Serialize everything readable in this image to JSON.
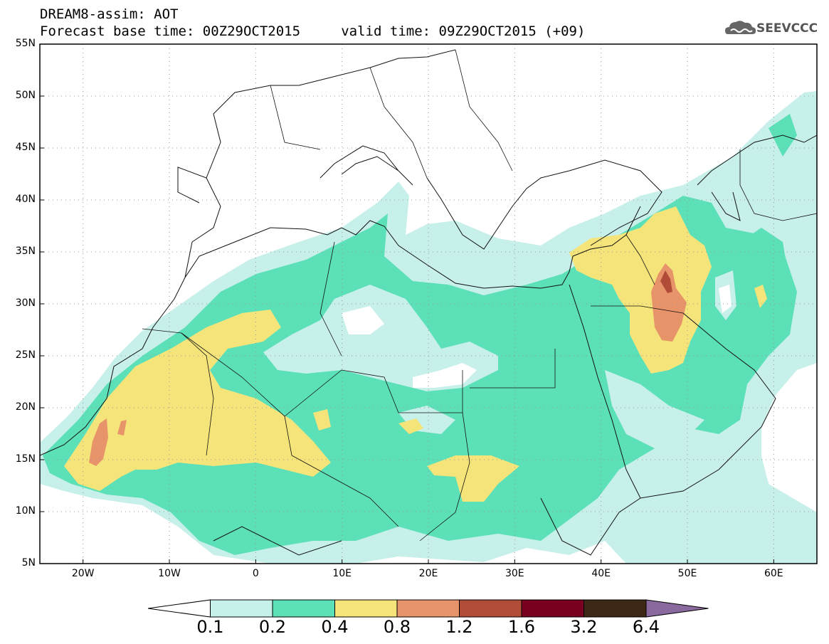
{
  "header": {
    "title": "DREAM8-assim: AOT",
    "subtitle": "Forecast base time: 00Z29OCT2015     valid time: 09Z29OCT2015 (+09)"
  },
  "logo": {
    "text": "SEEVCCC",
    "icon": "cloud-icon"
  },
  "map": {
    "lon_range": [
      -25,
      65
    ],
    "lat_range": [
      5,
      55
    ],
    "lat_labels": [
      "55N",
      "50N",
      "45N",
      "40N",
      "35N",
      "30N",
      "25N",
      "20N",
      "15N",
      "10N",
      "5N"
    ],
    "lon_labels": [
      "20W",
      "10W",
      "0",
      "10E",
      "20E",
      "30E",
      "40E",
      "50E",
      "60E"
    ],
    "background": "#ffffff",
    "grid": "dotted"
  },
  "colorbar": {
    "labels": [
      "0.1",
      "0.2",
      "0.4",
      "0.8",
      "1.2",
      "1.6",
      "3.2",
      "6.4"
    ],
    "colors": [
      "#ffffff",
      "#c8f0ea",
      "#5ce0b8",
      "#f5e47a",
      "#e8946a",
      "#b04c38",
      "#7a0020",
      "#3c2814",
      "#8a6a9e"
    ]
  }
}
